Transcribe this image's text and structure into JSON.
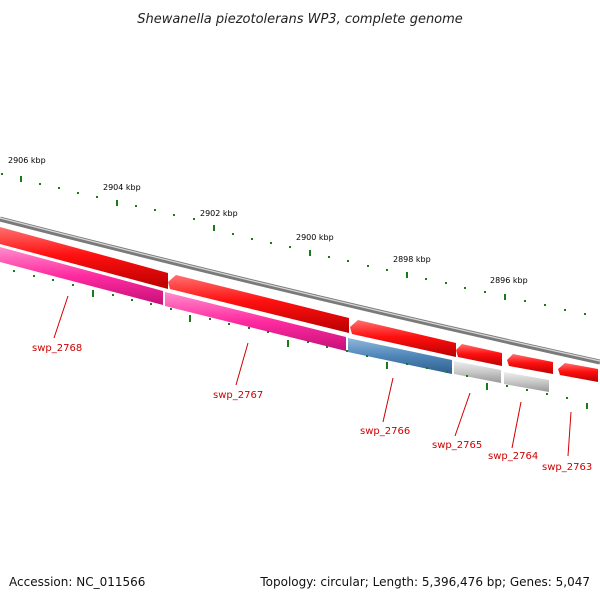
{
  "title": "Shewanella piezotolerans WP3, complete genome",
  "footer": {
    "accession": "Accession: NC_011566",
    "info": "Topology: circular; Length: 5,396,476 bp; Genes: 5,047"
  },
  "ticks": [
    {
      "label": "2906 kbp"
    },
    {
      "label": "2904 kbp"
    },
    {
      "label": "2902 kbp"
    },
    {
      "label": "2900 kbp"
    },
    {
      "label": "2898 kbp"
    },
    {
      "label": "2896 kbp"
    }
  ],
  "genes": [
    {
      "label": "swp_2768"
    },
    {
      "label": "swp_2767"
    },
    {
      "label": "swp_2766"
    },
    {
      "label": "swp_2765"
    },
    {
      "label": "swp_2764"
    },
    {
      "label": "swp_2763"
    }
  ],
  "colors": {
    "backbone": "#8a8a8a",
    "cds": "#ff1a1a",
    "gene_magenta": "#ff2ba0",
    "gene_blue": "#4f86b8",
    "gene_gray": "#c8c8c8",
    "tick": "#1a7a1a",
    "label": "#d00000"
  }
}
